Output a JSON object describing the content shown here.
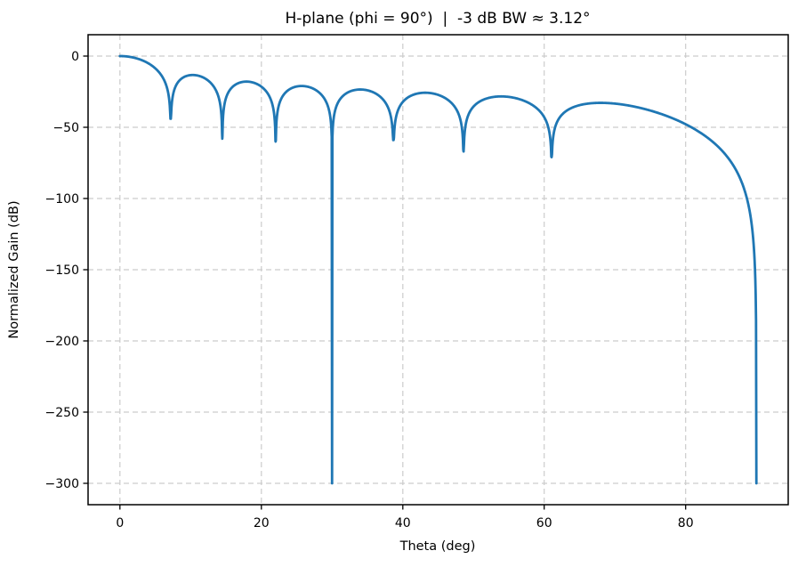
{
  "figure": {
    "background_color": "#ffffff",
    "spine_color": "#000000",
    "grid_color": "#cccccc"
  },
  "chart_data": {
    "type": "line",
    "title": "H-plane (phi = 90°)  |  -3 dB BW ≈ 3.12°",
    "xlabel": "Theta (deg)",
    "ylabel": "Normalized Gain (dB)",
    "xlim": [
      -4.5,
      94.5
    ],
    "ylim": [
      -315,
      15
    ],
    "xticks": [
      0,
      20,
      40,
      60,
      80
    ],
    "xtick_labels": [
      "0",
      "20",
      "40",
      "60",
      "80"
    ],
    "yticks": [
      0,
      -50,
      -100,
      -150,
      -200,
      -250,
      -300
    ],
    "ytick_labels": [
      "0",
      "−50",
      "−100",
      "−150",
      "−200",
      "−250",
      "−300"
    ],
    "grid": true,
    "grid_style": "dashed",
    "legend": "none",
    "line_color": "#1f77b4",
    "line_width": 2.8,
    "series": [
      {
        "name": "normalized-gain-h-plane",
        "beamwidth_3db_deg": 3.12,
        "phi_deg": 90,
        "model": {
          "kind": "uniform-broadside-array-factor-times-cos-element",
          "n_elements": 16,
          "spacing_wavelengths": 0.5,
          "element_factor": "cos(theta)",
          "clip_db": -300,
          "theta_start_deg": 0,
          "theta_end_deg": 90,
          "theta_step_deg": 0.05
        },
        "key_points": {
          "main_beam": {
            "theta": 0,
            "db": 0
          },
          "nulls": [
            {
              "theta": 7.18,
              "db": -44
            },
            {
              "theta": 14.48,
              "db": -58
            },
            {
              "theta": 22.02,
              "db": -60
            },
            {
              "theta": 30.0,
              "db": -300
            },
            {
              "theta": 38.68,
              "db": -59
            },
            {
              "theta": 48.59,
              "db": -67
            },
            {
              "theta": 61.04,
              "db": -71
            },
            {
              "theta": 90.0,
              "db": -300
            }
          ],
          "sidelobe_peaks": [
            {
              "theta": 10.3,
              "db": -12.6
            },
            {
              "theta": 18.1,
              "db": -18.1
            },
            {
              "theta": 25.9,
              "db": -21.2
            },
            {
              "theta": 33.9,
              "db": -24.4
            },
            {
              "theta": 43.2,
              "db": -26.2
            },
            {
              "theta": 54.6,
              "db": -28.1
            },
            {
              "theta": 67.8,
              "db": -33.1
            }
          ]
        }
      }
    ]
  }
}
